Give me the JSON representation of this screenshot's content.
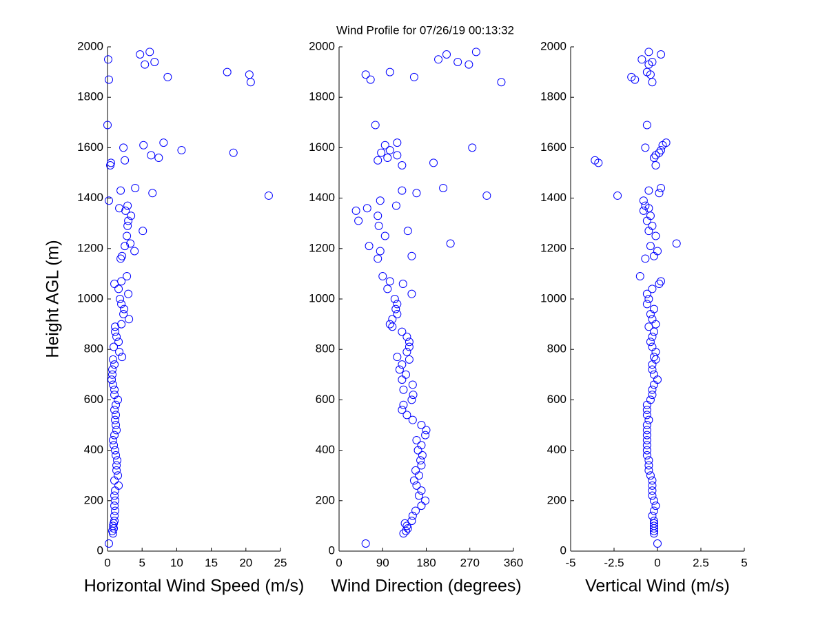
{
  "chart_data": [
    {
      "type": "scatter",
      "title": "Wind Profile for  07/26/19 00:13:32",
      "x_label": "Horizontal Wind Speed (m/s)",
      "y_label": "Height AGL (m)",
      "color": "#0000ff",
      "xlim": [
        0,
        25
      ],
      "xticks": [
        0,
        5,
        10,
        15,
        20,
        25
      ],
      "ylim": [
        0,
        2000
      ],
      "yticks": [
        0,
        200,
        400,
        600,
        800,
        1000,
        1200,
        1400,
        1600,
        1800,
        2000
      ],
      "x": [
        0.2,
        0.8,
        0.7,
        0.9,
        0.8,
        0.9,
        1.0,
        1.0,
        1.1,
        1.0,
        1.1,
        1.0,
        1.1,
        1.6,
        1.0,
        1.5,
        1.3,
        1.3,
        1.4,
        1.2,
        1.1,
        0.9,
        0.8,
        1.0,
        1.3,
        1.2,
        1.1,
        1.2,
        1.0,
        1.2,
        1.5,
        1.0,
        1.0,
        0.8,
        0.6,
        0.7,
        0.7,
        1.0,
        0.8,
        2.1,
        1.7,
        0.9,
        1.6,
        1.3,
        1.1,
        1.1,
        2.0,
        3.1,
        2.3,
        2.4,
        2.0,
        1.8,
        3.0,
        1.6,
        1.0,
        2.0,
        2.8,
        1.9,
        2.1,
        3.9,
        2.5,
        3.3,
        2.8,
        5.1,
        2.9,
        3.0,
        3.4,
        2.6,
        1.7,
        2.9,
        0.2,
        23.3,
        6.5,
        1.9,
        4.0,
        0.4,
        0.5,
        2.5,
        7.4,
        6.3,
        18.2,
        10.7,
        2.3,
        5.2,
        8.1,
        0.0,
        20.7,
        0.2,
        8.7,
        20.5,
        17.3,
        5.4,
        6.8,
        0.1,
        4.7,
        6.1
      ],
      "y": [
        30,
        70,
        80,
        90,
        100,
        110,
        120,
        140,
        160,
        180,
        200,
        220,
        240,
        260,
        280,
        300,
        320,
        340,
        360,
        380,
        400,
        420,
        440,
        460,
        480,
        500,
        520,
        540,
        560,
        580,
        600,
        620,
        640,
        660,
        680,
        700,
        720,
        740,
        760,
        770,
        790,
        810,
        830,
        850,
        870,
        890,
        900,
        920,
        940,
        960,
        980,
        1000,
        1020,
        1040,
        1060,
        1070,
        1090,
        1160,
        1170,
        1190,
        1210,
        1220,
        1250,
        1270,
        1290,
        1310,
        1330,
        1350,
        1360,
        1370,
        1390,
        1410,
        1420,
        1430,
        1440,
        1530,
        1540,
        1550,
        1560,
        1570,
        1580,
        1590,
        1600,
        1610,
        1620,
        1690,
        1860,
        1870,
        1880,
        1890,
        1900,
        1930,
        1940,
        1950,
        1970,
        1980
      ]
    },
    {
      "type": "scatter",
      "x_label": "Wind Direction (degrees)",
      "color": "#0000ff",
      "xlim": [
        0,
        360
      ],
      "xticks": [
        0,
        90,
        180,
        270,
        360
      ],
      "ylim": [
        0,
        2000
      ],
      "yticks": [
        0,
        200,
        400,
        600,
        800,
        1000,
        1200,
        1400,
        1600,
        1800,
        2000
      ],
      "x": [
        55,
        133,
        138,
        142,
        140,
        136,
        150,
        152,
        158,
        170,
        178,
        165,
        170,
        160,
        155,
        165,
        158,
        170,
        168,
        172,
        163,
        170,
        160,
        178,
        180,
        170,
        152,
        140,
        130,
        133,
        150,
        153,
        133,
        152,
        130,
        138,
        125,
        130,
        145,
        120,
        140,
        145,
        145,
        140,
        130,
        110,
        105,
        110,
        120,
        117,
        120,
        115,
        150,
        100,
        132,
        105,
        90,
        80,
        150,
        85,
        62,
        230,
        95,
        142,
        82,
        40,
        80,
        35,
        58,
        118,
        85,
        305,
        160,
        130,
        215,
        130,
        195,
        80,
        100,
        120,
        87,
        105,
        275,
        95,
        120,
        75,
        335,
        65,
        155,
        55,
        105,
        268,
        245,
        205,
        222,
        283
      ],
      "y": [
        30,
        70,
        80,
        90,
        100,
        110,
        120,
        140,
        160,
        180,
        200,
        220,
        240,
        260,
        280,
        300,
        320,
        340,
        360,
        380,
        400,
        420,
        440,
        460,
        480,
        500,
        520,
        540,
        560,
        580,
        600,
        620,
        640,
        660,
        680,
        700,
        720,
        740,
        760,
        770,
        790,
        810,
        830,
        850,
        870,
        890,
        900,
        920,
        940,
        960,
        980,
        1000,
        1020,
        1040,
        1060,
        1070,
        1090,
        1160,
        1170,
        1190,
        1210,
        1220,
        1250,
        1270,
        1290,
        1310,
        1330,
        1350,
        1360,
        1370,
        1390,
        1410,
        1420,
        1430,
        1440,
        1530,
        1540,
        1550,
        1560,
        1570,
        1580,
        1590,
        1600,
        1610,
        1620,
        1690,
        1860,
        1870,
        1880,
        1890,
        1900,
        1930,
        1940,
        1950,
        1970,
        1980
      ]
    },
    {
      "type": "scatter",
      "x_label": "Vertical Wind (m/s)",
      "color": "#0000ff",
      "xlim": [
        -5,
        5
      ],
      "xticks": [
        -5,
        -2.5,
        0,
        2.5,
        5
      ],
      "ylim": [
        0,
        2000
      ],
      "yticks": [
        0,
        200,
        400,
        600,
        800,
        1000,
        1200,
        1400,
        1600,
        1800,
        2000
      ],
      "x": [
        0,
        -0.2,
        -0.2,
        -0.2,
        -0.2,
        -0.2,
        -0.2,
        -0.3,
        -0.2,
        -0.1,
        -0.2,
        -0.3,
        -0.3,
        -0.3,
        -0.3,
        -0.4,
        -0.5,
        -0.5,
        -0.5,
        -0.6,
        -0.6,
        -0.6,
        -0.6,
        -0.6,
        -0.6,
        -0.6,
        -0.5,
        -0.6,
        -0.6,
        -0.6,
        -0.4,
        -0.3,
        -0.3,
        -0.2,
        0.0,
        -0.2,
        -0.3,
        -0.3,
        -0.1,
        -0.2,
        -0.1,
        -0.3,
        -0.4,
        -0.3,
        -0.2,
        -0.5,
        -0.1,
        -0.3,
        -0.4,
        -0.2,
        -0.6,
        -0.5,
        -0.6,
        -0.3,
        0.1,
        0.2,
        -1.0,
        -0.7,
        -0.2,
        0.0,
        -0.4,
        1.1,
        -0.1,
        -0.5,
        -0.3,
        -0.6,
        -0.4,
        -0.8,
        -0.5,
        -0.7,
        -0.8,
        -2.3,
        0.1,
        -0.5,
        0.2,
        -0.1,
        -3.4,
        -3.6,
        -0.2,
        -0.1,
        0.1,
        0.2,
        -0.7,
        0.3,
        0.5,
        -0.6,
        -0.3,
        -1.3,
        -1.5,
        -0.4,
        -0.6,
        -0.5,
        -0.3,
        -0.9,
        0.2,
        -0.5
      ],
      "y": [
        30,
        70,
        80,
        90,
        100,
        110,
        120,
        140,
        160,
        180,
        200,
        220,
        240,
        260,
        280,
        300,
        320,
        340,
        360,
        380,
        400,
        420,
        440,
        460,
        480,
        500,
        520,
        540,
        560,
        580,
        600,
        620,
        640,
        660,
        680,
        700,
        720,
        740,
        760,
        770,
        790,
        810,
        830,
        850,
        870,
        890,
        900,
        920,
        940,
        960,
        980,
        1000,
        1020,
        1040,
        1060,
        1070,
        1090,
        1160,
        1170,
        1190,
        1210,
        1220,
        1250,
        1270,
        1290,
        1310,
        1330,
        1350,
        1360,
        1370,
        1390,
        1410,
        1420,
        1430,
        1440,
        1530,
        1540,
        1550,
        1560,
        1570,
        1580,
        1590,
        1600,
        1610,
        1620,
        1690,
        1860,
        1870,
        1880,
        1890,
        1900,
        1930,
        1940,
        1950,
        1970,
        1980
      ]
    }
  ]
}
